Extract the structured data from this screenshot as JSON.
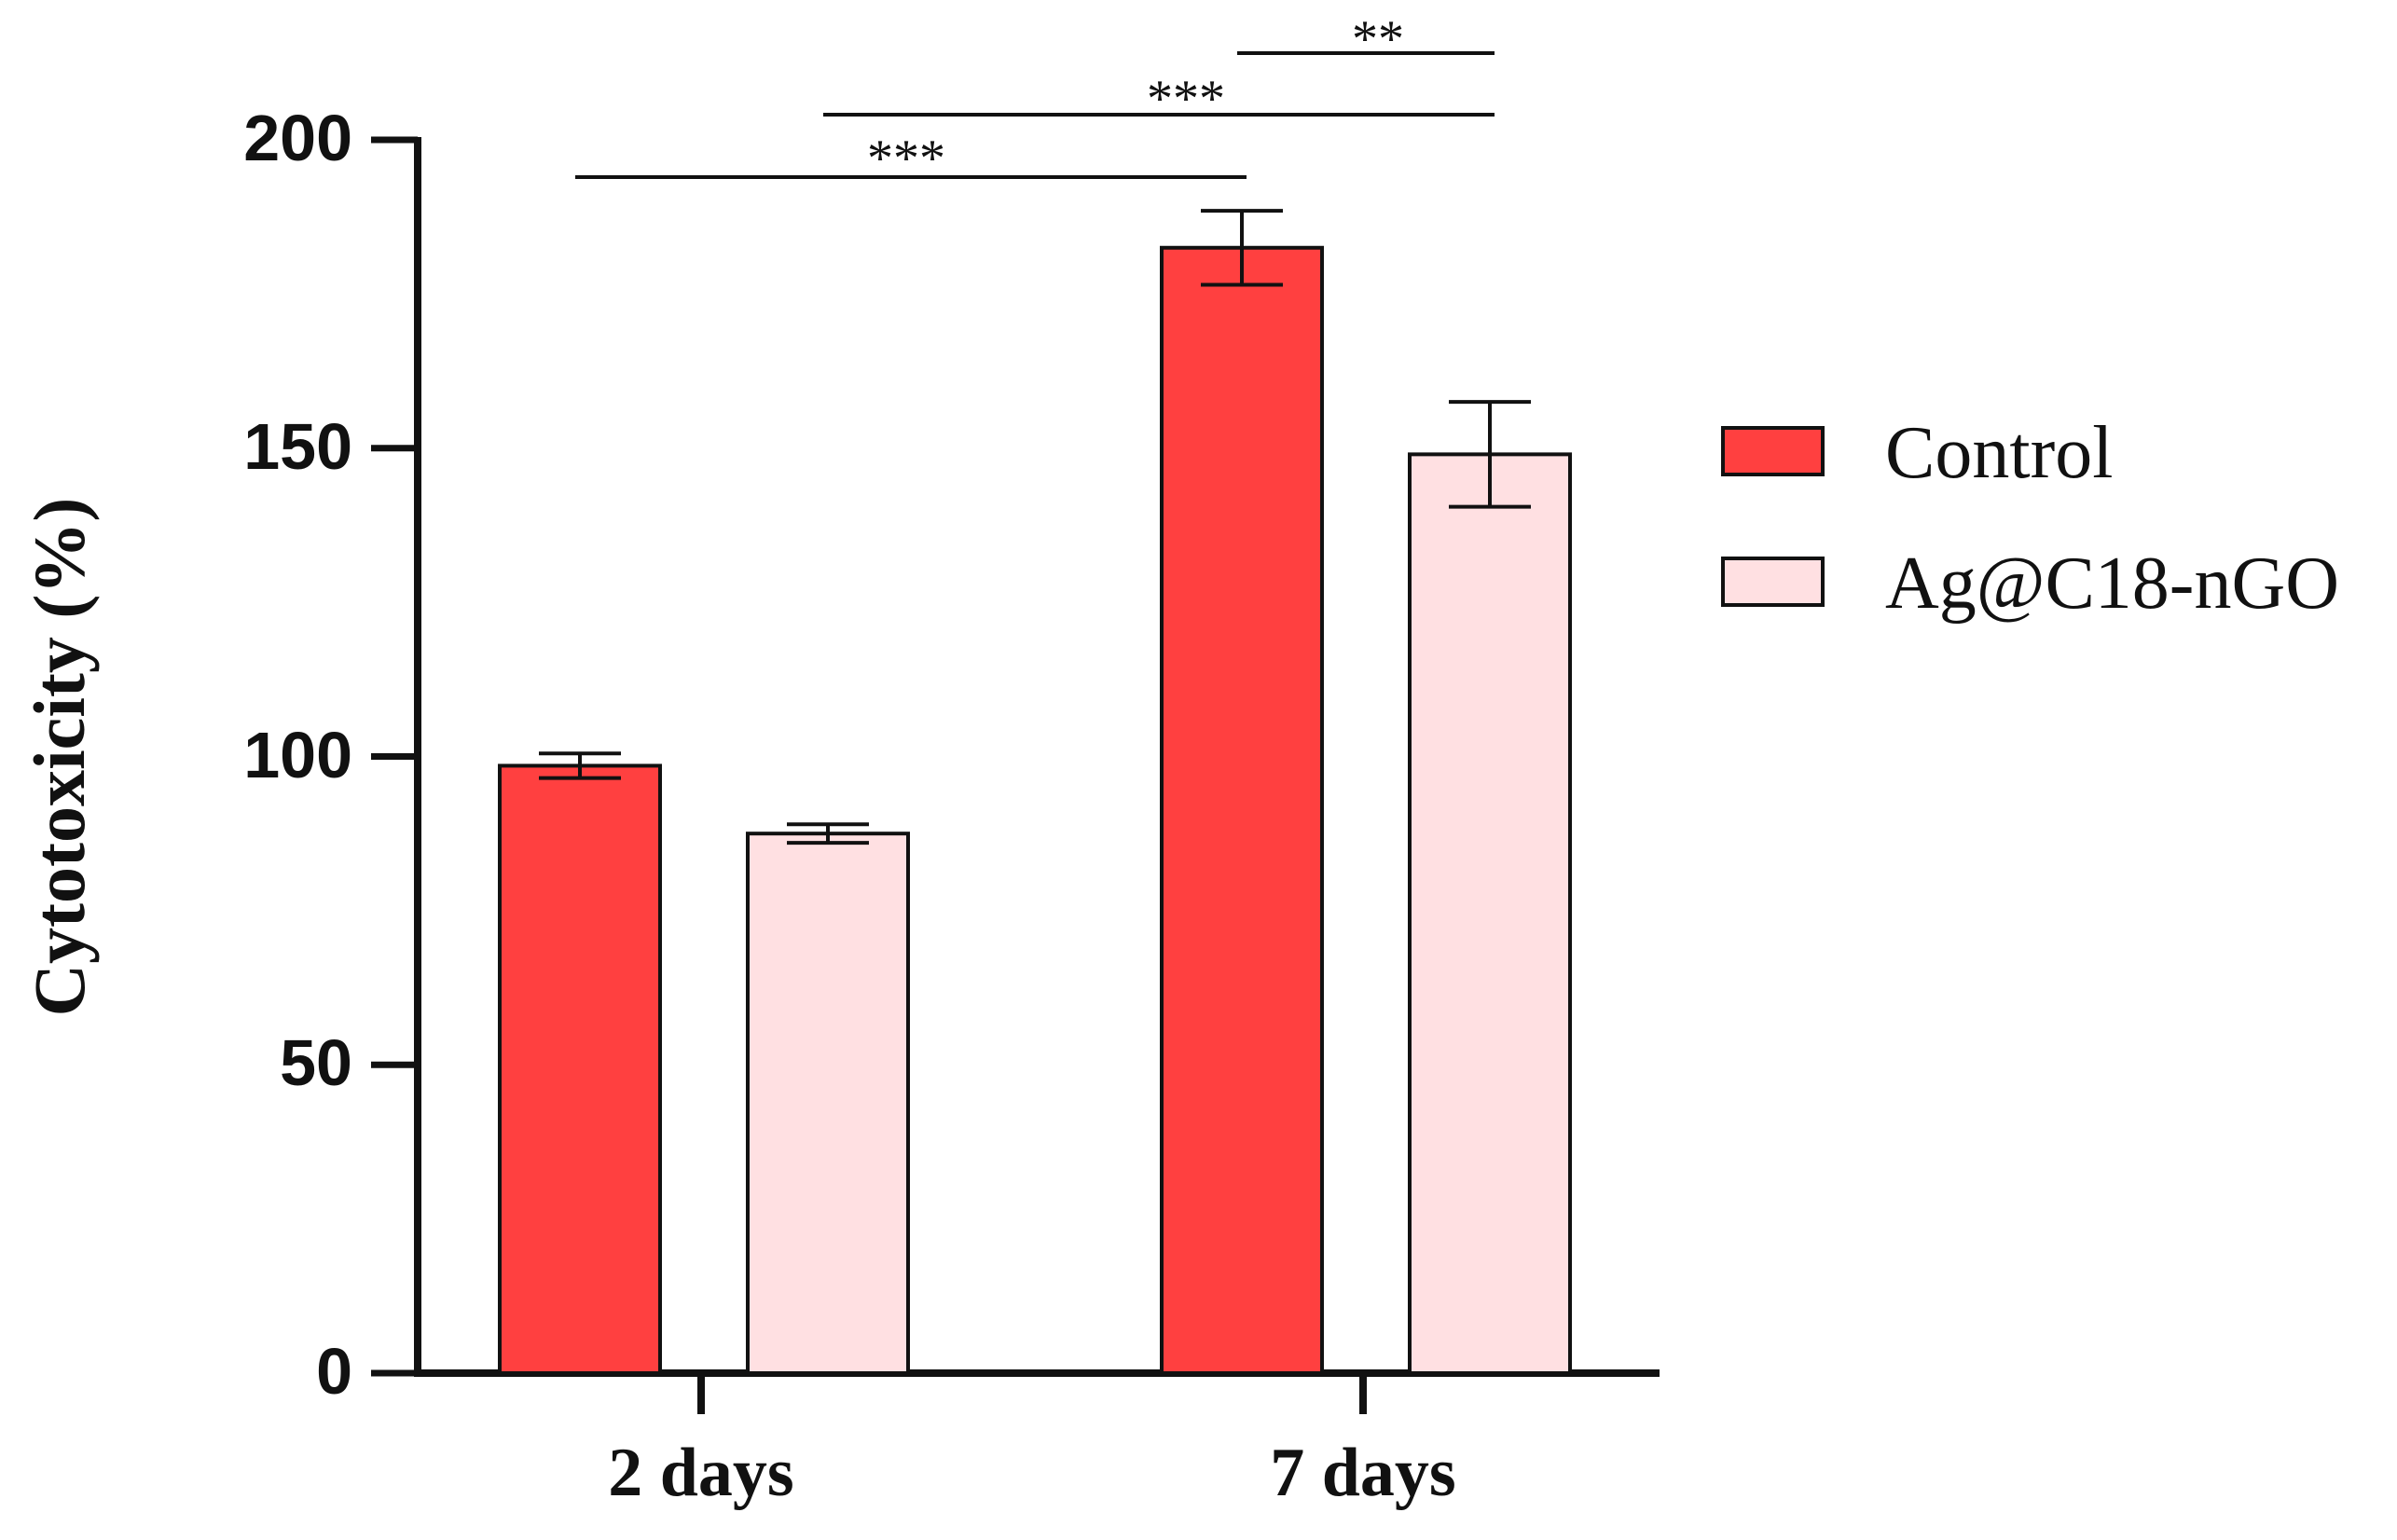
{
  "chart_data": {
    "type": "bar",
    "title": "",
    "xlabel": "",
    "ylabel": "Cytotoxicity (%)",
    "ylim": [
      0,
      200
    ],
    "yticks": [
      "0",
      "50",
      "100",
      "150",
      "200"
    ],
    "categories": [
      "2 days",
      "7 days"
    ],
    "series": [
      {
        "name": "Control",
        "color": "#ff4040",
        "values": [
          98.5,
          182.5
        ],
        "errors": [
          2.0,
          6.0
        ]
      },
      {
        "name": "Ag@C18-nGO",
        "color": "#ffe0e2",
        "values": [
          87.5,
          149.0
        ],
        "errors": [
          1.5,
          8.5
        ]
      }
    ],
    "legend": "right",
    "grid": false,
    "significance": [
      {
        "label": "***",
        "from": "2 days / Control",
        "to": "7 days / Control"
      },
      {
        "label": "***",
        "from": "2 days / Ag@C18-nGO",
        "to": "7 days / Ag@C18-nGO"
      },
      {
        "label": "**",
        "from": "7 days / Control",
        "to": "7 days / Ag@C18-nGO"
      }
    ]
  }
}
